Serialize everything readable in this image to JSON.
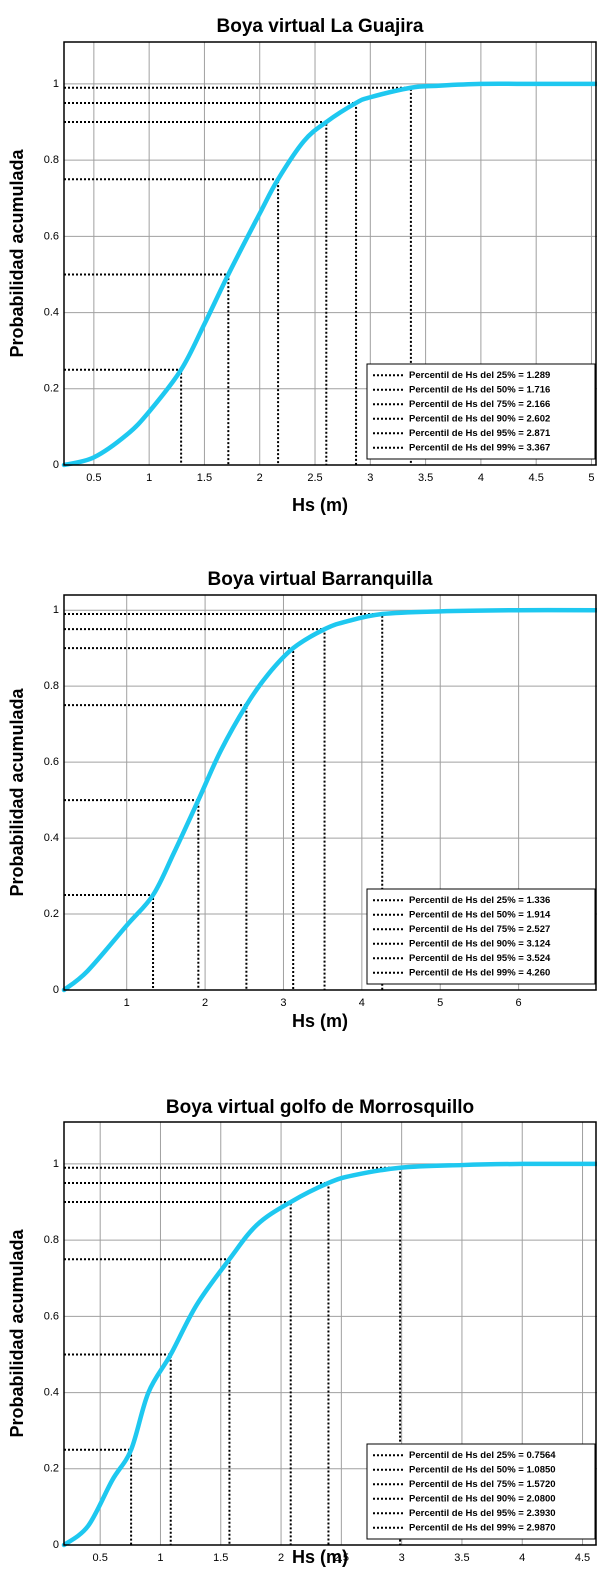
{
  "chart_data": [
    {
      "type": "line",
      "title": "Boya virtual La Guajira",
      "x_label": "Hs (m)",
      "y_label": "Probabilidad acumulada",
      "xlim": [
        0.23,
        5.05
      ],
      "ylim": [
        0,
        1.11
      ],
      "xticks": [
        0.5,
        1,
        1.5,
        2,
        2.5,
        3,
        3.5,
        4,
        4.5,
        5
      ],
      "yticks": [
        0,
        0.2,
        0.4,
        0.6,
        0.8,
        1
      ],
      "grid": true,
      "series": [
        {
          "color": "#1ec8f0",
          "x": [
            0.23,
            0.5,
            0.8,
            1.0,
            1.289,
            1.5,
            1.716,
            2.0,
            2.166,
            2.4,
            2.602,
            2.871,
            3.0,
            3.367,
            3.6,
            4.0,
            4.5,
            5.05
          ],
          "values": [
            0,
            0.02,
            0.08,
            0.14,
            0.25,
            0.37,
            0.5,
            0.66,
            0.75,
            0.85,
            0.9,
            0.95,
            0.965,
            0.99,
            0.995,
            1,
            1,
            1
          ]
        }
      ],
      "percentiles": [
        {
          "name": "Percentil de Hs del 25% = 1.289",
          "x": 1.289,
          "p": 0.25
        },
        {
          "name": "Percentil de Hs del 50% = 1.716",
          "x": 1.716,
          "p": 0.5
        },
        {
          "name": "Percentil de Hs del 75% = 2.166",
          "x": 2.166,
          "p": 0.75
        },
        {
          "name": "Percentil de Hs del 90% = 2.602",
          "x": 2.602,
          "p": 0.9
        },
        {
          "name": "Percentil de Hs del 95% = 2.871",
          "x": 2.871,
          "p": 0.95
        },
        {
          "name": "Percentil de Hs del 99% = 3.367",
          "x": 3.367,
          "p": 0.99
        }
      ],
      "legend": "lower right"
    },
    {
      "type": "line",
      "title": "Boya virtual Barranquilla",
      "x_label": "Hs (m)",
      "y_label": "Probabilidad acumulada",
      "xlim": [
        0.2,
        7.0
      ],
      "ylim": [
        0,
        1.04
      ],
      "xticks": [
        1,
        2,
        3,
        4,
        5,
        6
      ],
      "yticks": [
        0,
        0.2,
        0.4,
        0.6,
        0.8,
        1
      ],
      "grid": true,
      "series": [
        {
          "color": "#1ec8f0",
          "x": [
            0.2,
            0.5,
            1.0,
            1.336,
            1.6,
            1.914,
            2.2,
            2.527,
            2.8,
            3.124,
            3.524,
            3.8,
            4.26,
            5,
            6,
            7
          ],
          "values": [
            0,
            0.05,
            0.17,
            0.25,
            0.36,
            0.5,
            0.63,
            0.75,
            0.83,
            0.9,
            0.95,
            0.97,
            0.99,
            0.997,
            1,
            1
          ]
        }
      ],
      "percentiles": [
        {
          "name": "Percentil de Hs del 25% = 1.336",
          "x": 1.336,
          "p": 0.25
        },
        {
          "name": "Percentil de Hs del 50% = 1.914",
          "x": 1.914,
          "p": 0.5
        },
        {
          "name": "Percentil de Hs del 75% = 2.527",
          "x": 2.527,
          "p": 0.75
        },
        {
          "name": "Percentil de Hs del 90% = 3.124",
          "x": 3.124,
          "p": 0.9
        },
        {
          "name": "Percentil de Hs del 95% = 3.524",
          "x": 3.524,
          "p": 0.95
        },
        {
          "name": "Percentil de Hs del 99% = 4.260",
          "x": 4.26,
          "p": 0.99
        }
      ],
      "legend": "lower right"
    },
    {
      "type": "line",
      "title": "Boya virtual golfo de Morrosquillo",
      "x_label": "Hs (m)",
      "y_label": "Probabilidad acumulada",
      "xlim": [
        0.2,
        4.62
      ],
      "ylim": [
        0,
        1.11
      ],
      "xticks": [
        0.5,
        1,
        1.5,
        2,
        2.5,
        3,
        3.5,
        4,
        4.5
      ],
      "yticks": [
        0,
        0.2,
        0.4,
        0.6,
        0.8,
        1
      ],
      "grid": true,
      "series": [
        {
          "color": "#1ec8f0",
          "x": [
            0.2,
            0.4,
            0.6,
            0.7564,
            0.9,
            1.085,
            1.3,
            1.572,
            1.8,
            2.08,
            2.393,
            2.6,
            2.987,
            3.5,
            4.0,
            4.62
          ],
          "values": [
            0,
            0.05,
            0.17,
            0.25,
            0.4,
            0.5,
            0.63,
            0.75,
            0.84,
            0.9,
            0.95,
            0.97,
            0.99,
            0.997,
            1,
            1
          ]
        }
      ],
      "percentiles": [
        {
          "name": "Percentil de Hs del 25% = 0.7564",
          "x": 0.7564,
          "p": 0.25
        },
        {
          "name": "Percentil de Hs del 50% = 1.0850",
          "x": 1.085,
          "p": 0.5
        },
        {
          "name": "Percentil de Hs del 75% = 1.5720",
          "x": 1.572,
          "p": 0.75
        },
        {
          "name": "Percentil de Hs del 90% = 2.0800",
          "x": 2.08,
          "p": 0.9
        },
        {
          "name": "Percentil de Hs del 95% = 2.3930",
          "x": 2.393,
          "p": 0.95
        },
        {
          "name": "Percentil de Hs del 99% = 2.9870",
          "x": 2.987,
          "p": 0.99
        }
      ],
      "legend": "lower right"
    }
  ]
}
